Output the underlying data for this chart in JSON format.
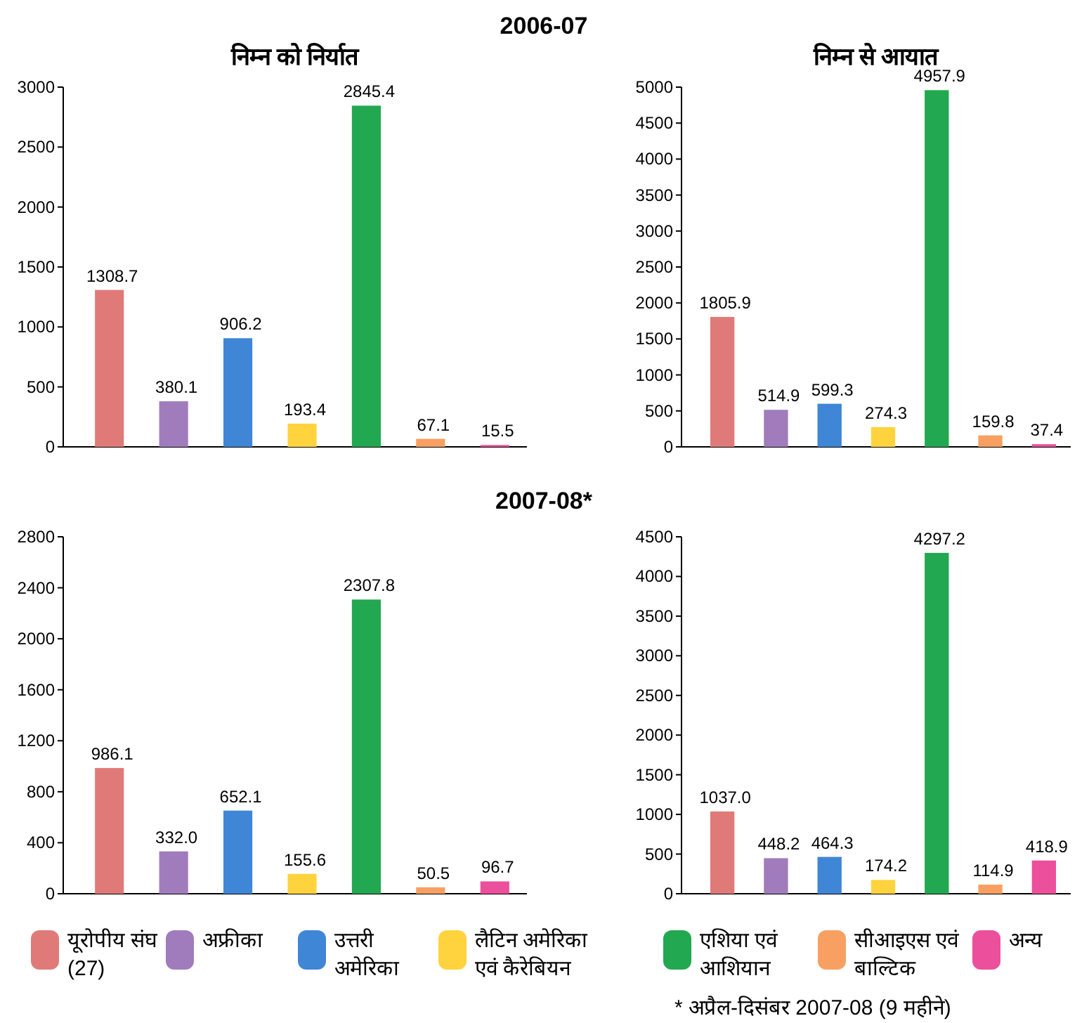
{
  "chart_data": [
    {
      "type": "bar",
      "title": "2006-07",
      "subtitle": "निम्न को निर्यात",
      "categories": [
        null,
        null,
        null,
        null,
        null,
        null,
        null
      ],
      "series": [
        {
          "color": "#e07a78",
          "values": [
            1308.7,
            null,
            null,
            null,
            null,
            null,
            null
          ],
          "value_labels": [
            "1308.7",
            null,
            null,
            null,
            null,
            null,
            null
          ]
        },
        {
          "color": "#a07cbc",
          "values": [
            null,
            380.1,
            null,
            null,
            null,
            null,
            null
          ],
          "value_labels": [
            null,
            "380.1",
            null,
            null,
            null,
            null,
            null
          ]
        },
        {
          "color": "#3f86d6",
          "values": [
            null,
            null,
            906.2,
            null,
            null,
            null,
            null
          ],
          "value_labels": [
            null,
            null,
            "906.2",
            null,
            null,
            null,
            null
          ]
        },
        {
          "color": "#ffd33d",
          "values": [
            null,
            null,
            null,
            193.4,
            null,
            null,
            null
          ],
          "value_labels": [
            null,
            null,
            null,
            "193.4",
            null,
            null,
            null
          ]
        },
        {
          "color": "#22a850",
          "values": [
            null,
            null,
            null,
            null,
            2845.4,
            null,
            null
          ],
          "value_labels": [
            null,
            null,
            null,
            null,
            "2845.4",
            null,
            null
          ]
        },
        {
          "color": "#f7a062",
          "values": [
            null,
            null,
            null,
            null,
            null,
            67.1,
            null
          ],
          "value_labels": [
            null,
            null,
            null,
            null,
            null,
            "67.1",
            null
          ]
        },
        {
          "color": "#ec4f9b",
          "values": [
            null,
            null,
            null,
            null,
            null,
            null,
            15.5
          ],
          "value_labels": [
            null,
            null,
            null,
            null,
            null,
            null,
            "15.5"
          ]
        }
      ],
      "ylim": [
        0,
        3000
      ],
      "yticks": [
        0,
        500,
        1000,
        1500,
        2000,
        2500,
        3000
      ]
    },
    {
      "type": "bar",
      "subtitle": "निम्न से आयात",
      "categories": [
        null,
        null,
        null,
        null,
        null,
        null,
        null
      ],
      "series": [
        {
          "color": "#e07a78",
          "values": [
            1805.9,
            null,
            null,
            null,
            null,
            null,
            null
          ],
          "value_labels": [
            "1805.9",
            null,
            null,
            null,
            null,
            null,
            null
          ]
        },
        {
          "color": "#a07cbc",
          "values": [
            null,
            514.9,
            null,
            null,
            null,
            null,
            null
          ],
          "value_labels": [
            null,
            "514.9",
            null,
            null,
            null,
            null,
            null
          ]
        },
        {
          "color": "#3f86d6",
          "values": [
            null,
            null,
            599.3,
            null,
            null,
            null,
            null
          ],
          "value_labels": [
            null,
            null,
            "599.3",
            null,
            null,
            null,
            null
          ]
        },
        {
          "color": "#ffd33d",
          "values": [
            null,
            null,
            null,
            274.3,
            null,
            null,
            null
          ],
          "value_labels": [
            null,
            null,
            null,
            "274.3",
            null,
            null,
            null
          ]
        },
        {
          "color": "#22a850",
          "values": [
            null,
            null,
            null,
            null,
            4957.9,
            null,
            null
          ],
          "value_labels": [
            null,
            null,
            null,
            null,
            "4957.9",
            null,
            null
          ]
        },
        {
          "color": "#f7a062",
          "values": [
            null,
            null,
            null,
            null,
            null,
            159.8,
            null
          ],
          "value_labels": [
            null,
            null,
            null,
            null,
            null,
            "159.8",
            null
          ]
        },
        {
          "color": "#ec4f9b",
          "values": [
            null,
            null,
            null,
            null,
            null,
            null,
            37.4
          ],
          "value_labels": [
            null,
            null,
            null,
            null,
            null,
            null,
            "37.4"
          ]
        }
      ],
      "ylim": [
        0,
        5000
      ],
      "yticks": [
        0,
        500,
        1000,
        1500,
        2000,
        2500,
        3000,
        3500,
        4000,
        4500,
        5000
      ]
    },
    {
      "type": "bar",
      "title": "2007-08*",
      "legend": "bottom",
      "categories": [
        null,
        null,
        null,
        null,
        null,
        null,
        null
      ],
      "series": [
        {
          "name": "यूरोपीय संघ (27)",
          "color": "#e07a78",
          "values": [
            986.1,
            null,
            null,
            null,
            null,
            null,
            null
          ],
          "value_labels": [
            "986.1",
            null,
            null,
            null,
            null,
            null,
            null
          ]
        },
        {
          "name": "अफ्रीका",
          "color": "#a07cbc",
          "values": [
            null,
            332.0,
            null,
            null,
            null,
            null,
            null
          ],
          "value_labels": [
            null,
            "332.0",
            null,
            null,
            null,
            null,
            null
          ]
        },
        {
          "name": "उत्तरी अमेरिका",
          "color": "#3f86d6",
          "values": [
            null,
            null,
            652.1,
            null,
            null,
            null,
            null
          ],
          "value_labels": [
            null,
            null,
            "652.1",
            null,
            null,
            null,
            null
          ]
        },
        {
          "name": "लैटिन अमेरिका एवं कैरेबियन",
          "color": "#ffd33d",
          "values": [
            null,
            null,
            null,
            155.6,
            null,
            null,
            null
          ],
          "value_labels": [
            null,
            null,
            null,
            "155.6",
            null,
            null,
            null
          ]
        },
        {
          "name": "एशिया एवं आशियान",
          "color": "#22a850",
          "values": [
            null,
            null,
            null,
            null,
            2307.8,
            null,
            null
          ],
          "value_labels": [
            null,
            null,
            null,
            null,
            "2307.8",
            null,
            null
          ]
        },
        {
          "name": "सीआइएस एवं बाल्टिक",
          "color": "#f7a062",
          "values": [
            null,
            null,
            null,
            null,
            null,
            50.5,
            null
          ],
          "value_labels": [
            null,
            null,
            null,
            null,
            null,
            "50.5",
            null
          ]
        },
        {
          "name": "अन्य",
          "color": "#ec4f9b",
          "values": [
            null,
            null,
            null,
            null,
            null,
            null,
            96.7
          ],
          "value_labels": [
            null,
            null,
            null,
            null,
            null,
            null,
            "96.7"
          ]
        }
      ],
      "ylim": [
        0,
        2800
      ],
      "yticks": [
        0,
        400,
        800,
        1200,
        1600,
        2000,
        2400,
        2800
      ]
    },
    {
      "type": "bar",
      "annotations": [
        "* अप्रैल-दिसंबर 2007-08 (9 महीने)"
      ],
      "categories": [
        null,
        null,
        null,
        null,
        null,
        null,
        null
      ],
      "series": [
        {
          "color": "#e07a78",
          "values": [
            1037.0,
            null,
            null,
            null,
            null,
            null,
            null
          ],
          "value_labels": [
            "1037.0",
            null,
            null,
            null,
            null,
            null,
            null
          ]
        },
        {
          "color": "#a07cbc",
          "values": [
            null,
            448.2,
            null,
            null,
            null,
            null,
            null
          ],
          "value_labels": [
            null,
            "448.2",
            null,
            null,
            null,
            null,
            null
          ]
        },
        {
          "color": "#3f86d6",
          "values": [
            null,
            null,
            464.3,
            null,
            null,
            null,
            null
          ],
          "value_labels": [
            null,
            null,
            "464.3",
            null,
            null,
            null,
            null
          ]
        },
        {
          "color": "#ffd33d",
          "values": [
            null,
            null,
            null,
            174.2,
            null,
            null,
            null
          ],
          "value_labels": [
            null,
            null,
            null,
            "174.2",
            null,
            null,
            null
          ]
        },
        {
          "color": "#22a850",
          "values": [
            null,
            null,
            null,
            null,
            4297.2,
            null,
            null
          ],
          "value_labels": [
            null,
            null,
            null,
            null,
            "4297.2",
            null,
            null
          ]
        },
        {
          "color": "#f7a062",
          "values": [
            null,
            null,
            null,
            null,
            null,
            114.9,
            null
          ],
          "value_labels": [
            null,
            null,
            null,
            null,
            null,
            "114.9",
            null
          ]
        },
        {
          "color": "#ec4f9b",
          "values": [
            null,
            null,
            null,
            null,
            null,
            null,
            418.9
          ],
          "value_labels": [
            null,
            null,
            null,
            null,
            null,
            null,
            "418.9"
          ]
        }
      ],
      "ylim": [
        0,
        4500
      ],
      "yticks": [
        0,
        500,
        1000,
        1500,
        2000,
        2500,
        3000,
        3500,
        4000,
        4500
      ]
    }
  ]
}
